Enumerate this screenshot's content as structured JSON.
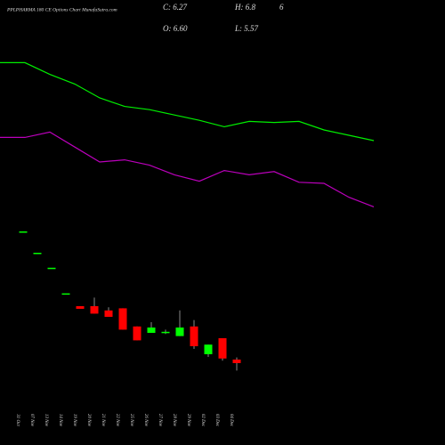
{
  "chart_data": {
    "type": "candlestick",
    "title": "PPLPHARMA 180 CE Options Chart MunafaSutra.com",
    "annotations": [
      "C: 6.27",
      "O: 6.60",
      "H: 6.8",
      "L: 5.57",
      "6"
    ],
    "categories": [
      "31 Oct",
      "07 Nov",
      "13 Nov",
      "14 Nov",
      "19 Nov",
      "20 Nov",
      "21 Nov",
      "22 Nov",
      "25 Nov",
      "26 Nov",
      "27 Nov",
      "28 Nov",
      "29 Nov",
      "02 Dec",
      "03 Dec",
      "04 Dec"
    ],
    "open": [
      18.6,
      16.6,
      15.2,
      12.8,
      11.6,
      11.6,
      11.2,
      11.4,
      9.7,
      9.1,
      9.15,
      8.8,
      9.7,
      7.1,
      8.6,
      6.6
    ],
    "high": [
      18.6,
      16.6,
      15.2,
      12.8,
      11.6,
      12.4,
      11.5,
      11.4,
      9.7,
      10.1,
      9.4,
      11.2,
      10.3,
      8.0,
      8.6,
      6.8
    ],
    "low": [
      18.6,
      16.6,
      15.2,
      12.8,
      11.35,
      10.9,
      10.6,
      9.4,
      8.4,
      9.1,
      9.0,
      8.8,
      7.6,
      6.85,
      6.5,
      5.57
    ],
    "close": [
      18.6,
      16.6,
      15.2,
      12.8,
      11.35,
      10.9,
      10.6,
      9.4,
      8.4,
      9.6,
      9.2,
      9.6,
      7.85,
      8.0,
      6.7,
      6.27
    ],
    "up_color": "#00ff00",
    "down_color": "#ff0000",
    "series": [
      {
        "color": "#00ee00",
        "values": [
          34.4,
          34.4,
          33.3,
          32.4,
          31.1,
          30.3,
          30.0,
          29.5,
          29.0,
          28.4,
          28.9,
          28.8,
          28.9,
          28.1,
          27.6,
          27.1
        ]
      },
      {
        "color": "#bb00bb",
        "values": [
          27.4,
          27.4,
          27.9,
          26.5,
          25.1,
          25.3,
          24.8,
          23.9,
          23.3,
          24.3,
          23.9,
          24.2,
          23.2,
          23.1,
          21.8,
          20.9
        ]
      }
    ],
    "ylim": [
      -1.4,
      40.27
    ]
  }
}
